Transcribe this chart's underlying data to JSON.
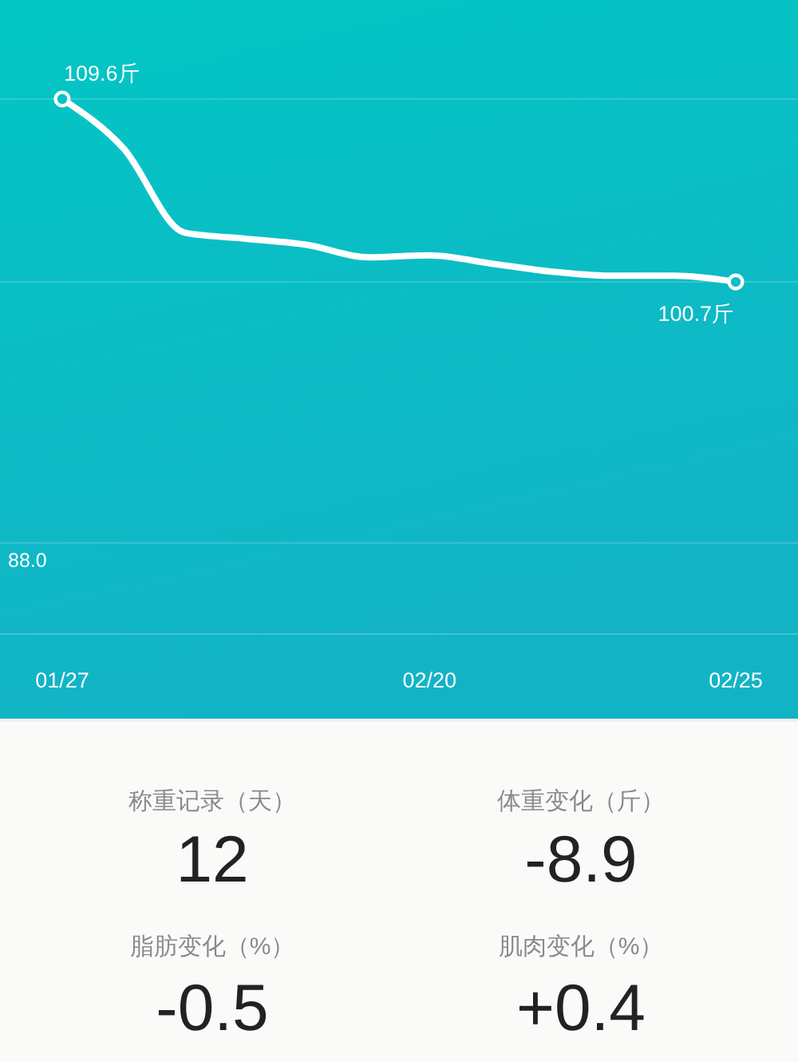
{
  "chart_data": [
    {
      "type": "line",
      "categories": [
        "01/27",
        null,
        null,
        null,
        null,
        null,
        "02/20",
        null,
        null,
        null,
        null,
        "02/25"
      ],
      "series": [
        {
          "type": "line",
          "color": "#ffffff",
          "values": [
            109.6,
            107.2,
            103.1,
            102.8,
            102.5,
            101.9,
            102.0,
            101.6,
            101.2,
            101.0,
            101.0,
            100.7
          ]
        },
        {
          "type": "scatter",
          "color": "#ffffff",
          "marker": "circle",
          "x": [
            "01/27",
            "02/25"
          ],
          "values": [
            109.6,
            100.7
          ],
          "value_labels": [
            "109.6斤",
            "100.7斤"
          ]
        }
      ],
      "ref_lines": [
        {
          "axis": "y",
          "value": 109.6
        },
        {
          "axis": "y",
          "value": 100.7
        },
        {
          "axis": "y",
          "value": 88,
          "label": "88.0"
        }
      ]
    },
    {
      "type": "other",
      "annotations": [
        "称重记录（天）",
        "12",
        "体重变化（斤）",
        "-8.9",
        "脂肪变化（%）",
        "-0.5",
        "肌肉变化（%）",
        "+0.4"
      ]
    }
  ]
}
